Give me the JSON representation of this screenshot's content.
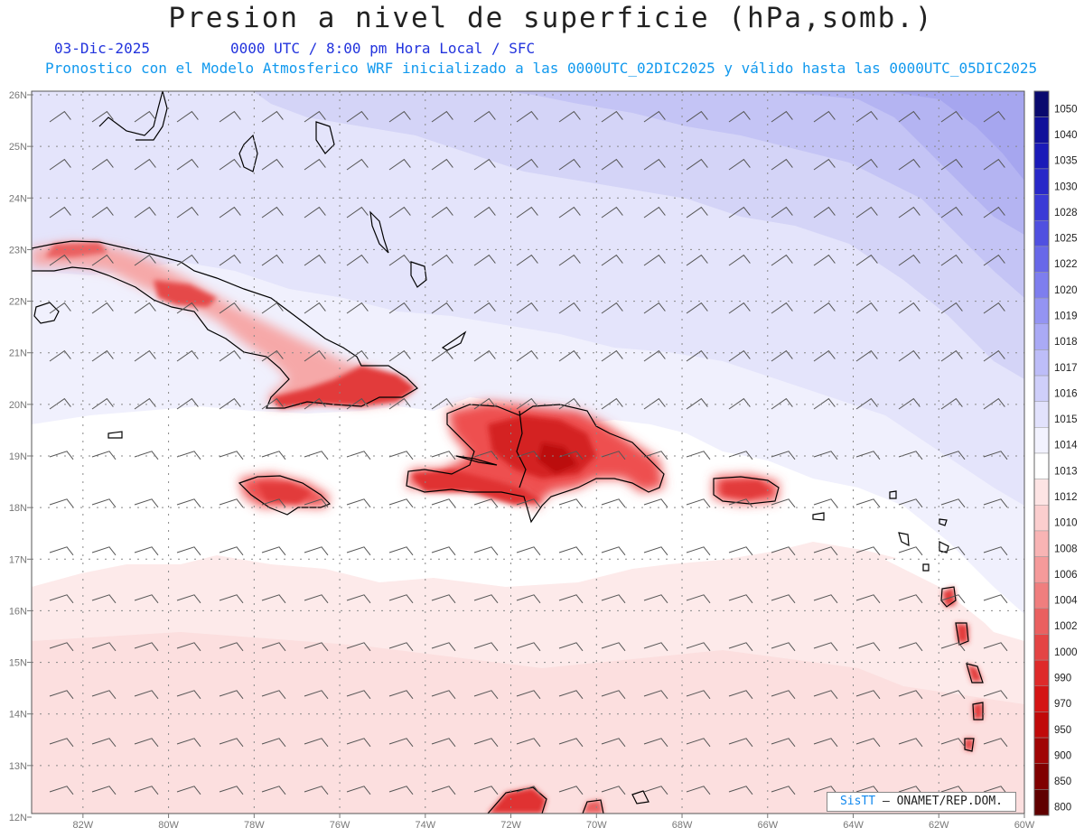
{
  "title": "Presion a nivel de superficie (hPa,somb.)",
  "date": "03-Dic-2025",
  "time_line": "0000 UTC / 8:00 pm Hora Local / SFC",
  "forecast_line": "Pronostico con el Modelo Atmosferico WRF inicializado a las 0000UTC_02DIC2025 y válido hasta las  0000UTC_05DIC2025",
  "credit": {
    "brand": "SisTT",
    "org": "– ONAMET/REP.DOM."
  },
  "lat_labels": [
    "26N",
    "25N",
    "24N",
    "23N",
    "22N",
    "21N",
    "20N",
    "19N",
    "18N",
    "17N",
    "16N",
    "15N",
    "14N",
    "13N",
    "12N"
  ],
  "lon_labels": [
    "82W",
    "80W",
    "78W",
    "76W",
    "74W",
    "72W",
    "70W",
    "68W",
    "66W",
    "64W",
    "62W",
    "60W"
  ],
  "colorbar": {
    "levels": [
      "1050",
      "1040",
      "1035",
      "1030",
      "1028",
      "1025",
      "1022",
      "1020",
      "1019",
      "1018",
      "1017",
      "1016",
      "1015",
      "1014",
      "1013",
      "1012",
      "1010",
      "1008",
      "1006",
      "1004",
      "1002",
      "1000",
      "990",
      "970",
      "950",
      "900",
      "850",
      "800"
    ],
    "colors": [
      "#0a0a6e",
      "#10109a",
      "#1a1ab8",
      "#2828c8",
      "#3a3ad6",
      "#5050e0",
      "#6868e8",
      "#7e7eee",
      "#9494f2",
      "#aaaaf5",
      "#bdbdf8",
      "#cfcffa",
      "#e2e2fc",
      "#f2f2fe",
      "#ffffff",
      "#fde4e4",
      "#fbcece",
      "#f8b4b4",
      "#f59a9a",
      "#f07e7e",
      "#ea6060",
      "#e44444",
      "#de2a2a",
      "#d41414",
      "#c00a0a",
      "#a00505",
      "#800000",
      "#600000"
    ]
  }
}
